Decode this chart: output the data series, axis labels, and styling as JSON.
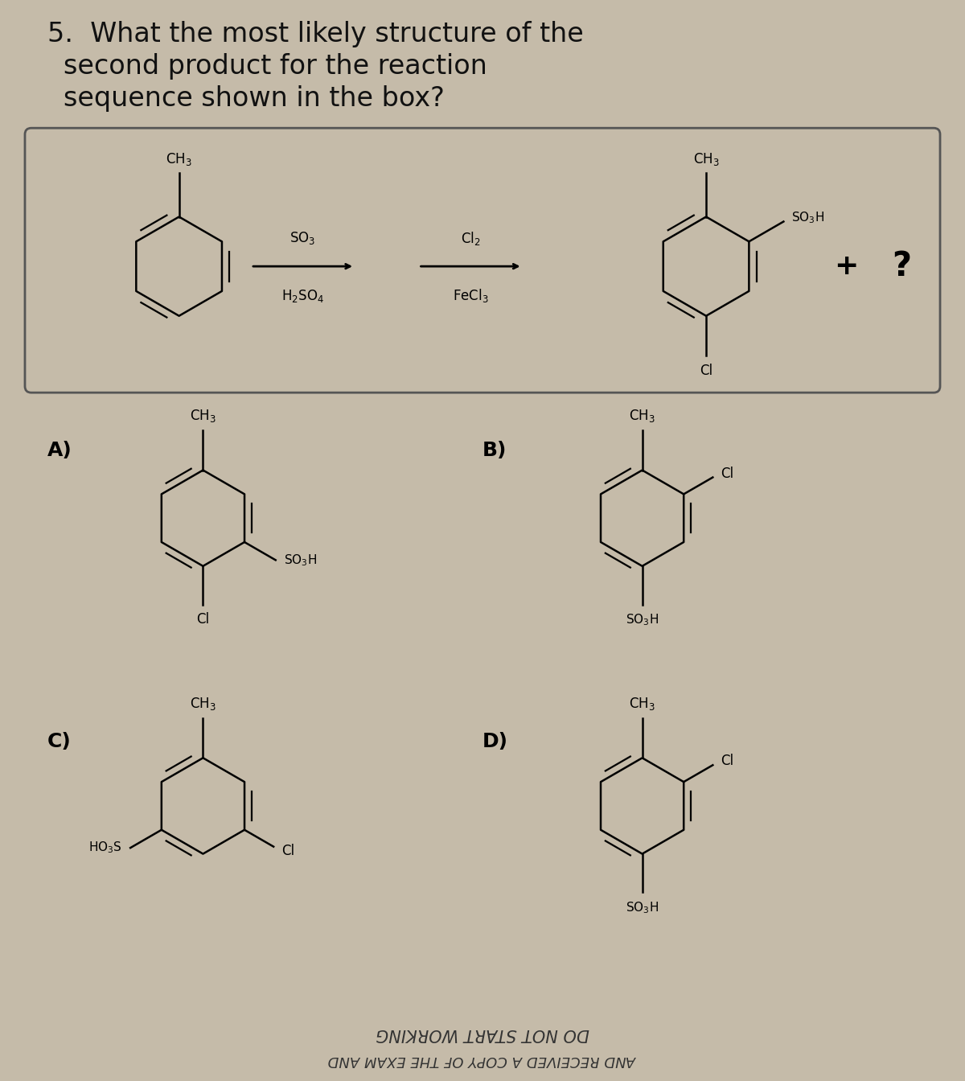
{
  "bg_color": "#c5bba9",
  "box_bg": "#c5bba9",
  "box_edge": "#555555",
  "text_color": "#111111",
  "question_line1": "5.  What the most likely structure of the",
  "question_line2": "    second product for the reaction",
  "question_line3": "    sequence shown in the box?",
  "q_fontsize": 24,
  "label_fontsize": 18,
  "chem_fontsize": 12,
  "bottom_text1": "DO NOT START WORKING",
  "bottom_text2": "AND RECEIVED A COPY OF THE EXAM AND"
}
